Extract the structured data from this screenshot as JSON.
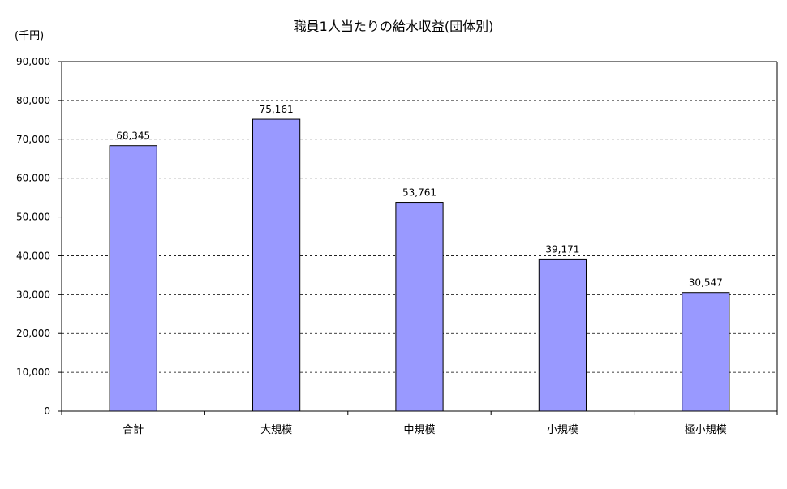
{
  "chart_data": {
    "type": "bar",
    "title": "職員1人当たりの給水収益(団体別)",
    "unit_label": "(千円)",
    "categories": [
      "合計",
      "大規模",
      "中規模",
      "小規模",
      "極小規模"
    ],
    "values": [
      68345,
      75161,
      53761,
      39171,
      30547
    ],
    "value_labels": [
      "68,345",
      "75,161",
      "53,761",
      "39,171",
      "30,547"
    ],
    "ylim": [
      0,
      90000
    ],
    "yticks": [
      0,
      10000,
      20000,
      30000,
      40000,
      50000,
      60000,
      70000,
      80000,
      90000
    ],
    "ytick_labels": [
      "0",
      "10,000",
      "20,000",
      "30,000",
      "40,000",
      "50,000",
      "60,000",
      "70,000",
      "80,000",
      "90,000"
    ],
    "grid": true,
    "bar_color": "#9999ff"
  }
}
